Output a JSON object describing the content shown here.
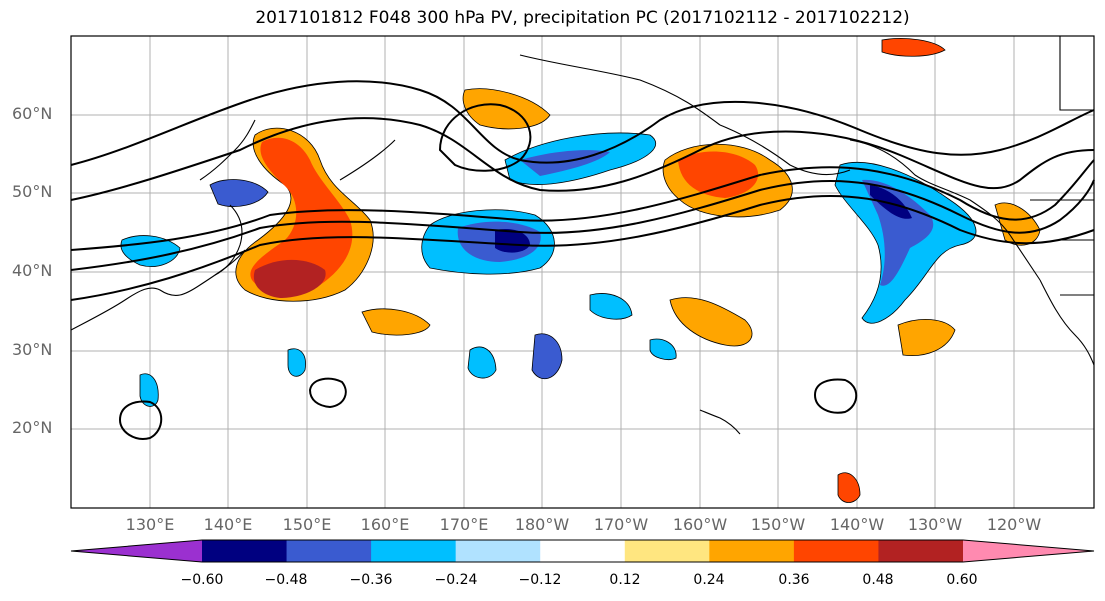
{
  "title": "2017101812 F048 300 hPa PV, precipitation PC (2017102112 - 2017102212)",
  "lat_labels": [
    "60°N",
    "50°N",
    "40°N",
    "30°N",
    "20°N"
  ],
  "lon_labels": [
    "130°E",
    "140°E",
    "150°E",
    "160°E",
    "170°E",
    "180°W",
    "170°W",
    "160°W",
    "150°W",
    "140°W",
    "130°W",
    "120°W"
  ],
  "colorbar": {
    "ticks": [
      "−0.60",
      "−0.48",
      "−0.36",
      "−0.24",
      "−0.12",
      "0.12",
      "0.24",
      "0.36",
      "0.48",
      "0.60"
    ],
    "colors": [
      "#9b30d0",
      "#000080",
      "#3a5bd0",
      "#00bfff",
      "#b0e2ff",
      "#ffffff",
      "#ffe680",
      "#ffa500",
      "#ff4500",
      "#b22222",
      "#ff8ab0"
    ]
  },
  "map": {
    "lat_range": [
      10,
      70
    ],
    "lon_range_east": [
      120,
      250
    ],
    "grid": true
  }
}
